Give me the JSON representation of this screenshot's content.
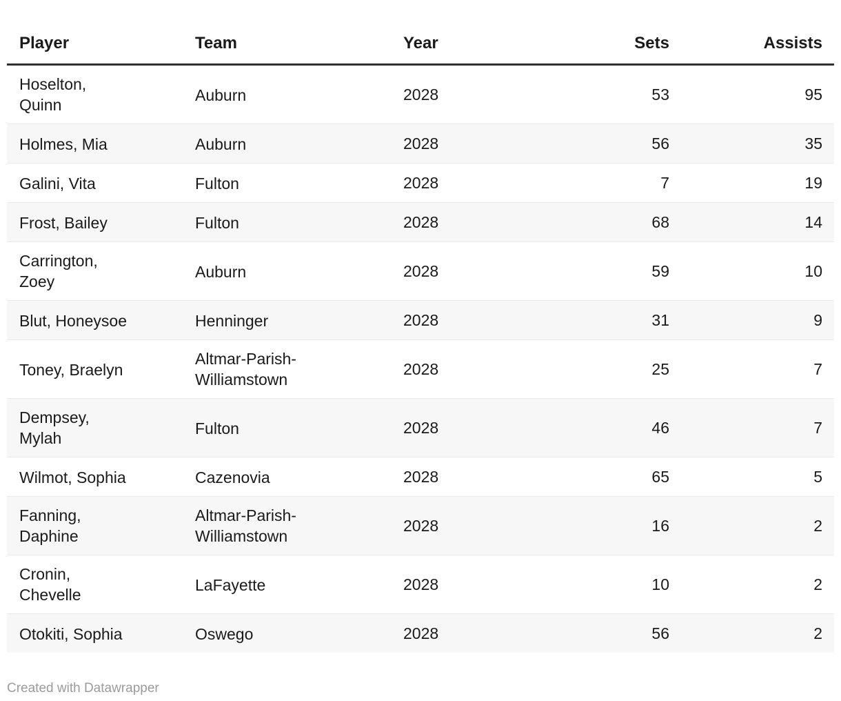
{
  "chart_data": {
    "type": "table",
    "columns": [
      "Player",
      "Team",
      "Year",
      "Sets",
      "Assists"
    ],
    "rows": [
      [
        "Hoselton, Quinn",
        "Auburn",
        "2028",
        "53",
        "95"
      ],
      [
        "Holmes, Mia",
        "Auburn",
        "2028",
        "56",
        "35"
      ],
      [
        "Galini, Vita",
        "Fulton",
        "2028",
        "7",
        "19"
      ],
      [
        "Frost, Bailey",
        "Fulton",
        "2028",
        "68",
        "14"
      ],
      [
        "Carrington, Zoey",
        "Auburn",
        "2028",
        "59",
        "10"
      ],
      [
        "Blut, Honeysoe",
        "Henninger",
        "2028",
        "31",
        "9"
      ],
      [
        "Toney, Braelyn",
        "Altmar-Parish-Williamstown",
        "2028",
        "25",
        "7"
      ],
      [
        "Dempsey, Mylah",
        "Fulton",
        "2028",
        "46",
        "7"
      ],
      [
        "Wilmot, Sophia",
        "Cazenovia",
        "2028",
        "65",
        "5"
      ],
      [
        "Fanning, Daphine",
        "Altmar-Parish-Williamstown",
        "2028",
        "16",
        "2"
      ],
      [
        "Cronin, Chevelle",
        "LaFayette",
        "2028",
        "10",
        "2"
      ],
      [
        "Otokiti, Sophia",
        "Oswego",
        "2028",
        "56",
        "2"
      ]
    ],
    "layout": {
      "zebra_striping": true,
      "numeric_columns_right_aligned": [
        "Sets",
        "Assists"
      ],
      "sorted_by": "Assists descending"
    }
  },
  "footer": {
    "text": "Created with Datawrapper"
  },
  "colors": {
    "text": "#1a1a1a",
    "stripe": "#f7f7f7",
    "divider": "#e9e9e9",
    "header_border": "#2e2e2e",
    "footer_text": "#9b9b9b",
    "background": "#ffffff"
  }
}
